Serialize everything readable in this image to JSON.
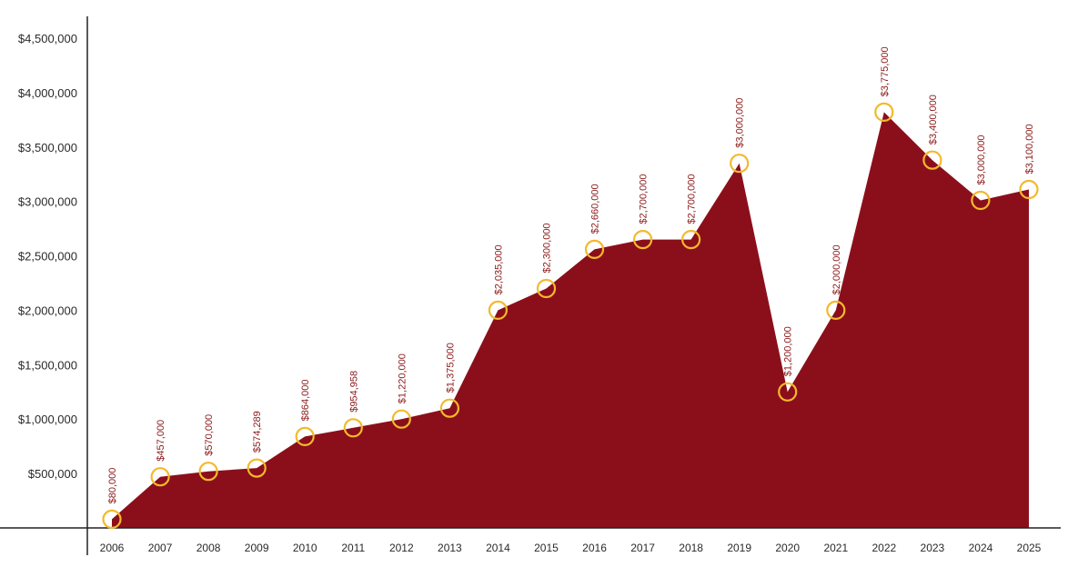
{
  "chart_data": {
    "type": "area",
    "title": "",
    "xlabel": "",
    "ylabel": "",
    "x": [
      "2006",
      "2007",
      "2008",
      "2009",
      "2010",
      "2011",
      "2012",
      "2013",
      "2014",
      "2015",
      "2016",
      "2017",
      "2018",
      "2019",
      "2020",
      "2021",
      "2022",
      "2023",
      "2024",
      "2025"
    ],
    "values": [
      80000,
      457000,
      570000,
      574289,
      864000,
      954958,
      1220000,
      1375000,
      2035000,
      2300000,
      2660000,
      2700000,
      2700000,
      3000000,
      1200000,
      2000000,
      3775000,
      3400000,
      3000000,
      3100000
    ],
    "data_labels": [
      "$80,000",
      "$457,000",
      "$570,000",
      "$574,289",
      "$864,000",
      "$954,958",
      "$1,220,000",
      "$1,375,000",
      "$2,035,000",
      "$2,300,000",
      "$2,660,000",
      "$2,700,000",
      "$2,700,000",
      "$3,000,000",
      "$1,200,000",
      "$2,000,000",
      "$3,775,000",
      "$3,400,000",
      "$3,000,000",
      "$3,100,000"
    ],
    "plotted_levels": [
      80000,
      470000,
      520000,
      550000,
      840000,
      920000,
      1000000,
      1100000,
      2000000,
      2200000,
      2560000,
      2650000,
      2650000,
      3350000,
      1250000,
      2000000,
      3820000,
      3380000,
      3010000,
      3110000
    ],
    "y_ticks": [
      500000,
      1000000,
      1500000,
      2000000,
      2500000,
      3000000,
      3500000,
      4000000,
      4500000
    ],
    "y_tick_labels": [
      "$500,000",
      "$1,000,000",
      "$1,500,000",
      "$2,000,000",
      "$2,500,000",
      "$3,000,000",
      "$3,500,000",
      "$4,000,000",
      "$4,500,000"
    ],
    "ylim": [
      0,
      4700000
    ],
    "grid": false,
    "legend": "none",
    "colors": {
      "area": "#8b0f1a",
      "marker": "#f3b92c",
      "label": "#8b1a1a",
      "axis": "#222222"
    }
  }
}
